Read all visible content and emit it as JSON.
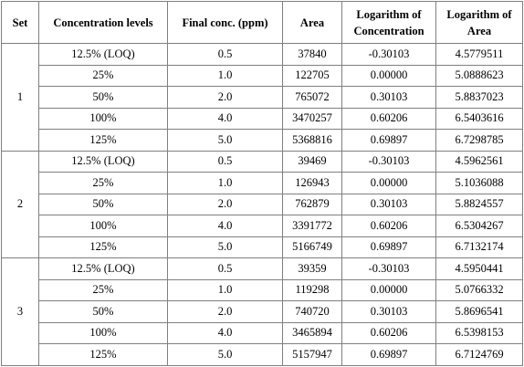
{
  "table": {
    "headers": [
      "Set",
      "Concentration levels",
      "Final conc. (ppm)",
      "Area",
      "Logarithm of Concentration",
      "Logarithm of Area"
    ],
    "sets": [
      {
        "set": "1",
        "rows": [
          {
            "level": "12.5% (LOQ)",
            "final_conc": "0.5",
            "area": "37840",
            "log_conc": "-0.30103",
            "log_area": "4.5779511"
          },
          {
            "level": "25%",
            "final_conc": "1.0",
            "area": "122705",
            "log_conc": "0.00000",
            "log_area": "5.0888623"
          },
          {
            "level": "50%",
            "final_conc": "2.0",
            "area": "765072",
            "log_conc": "0.30103",
            "log_area": "5.8837023"
          },
          {
            "level": "100%",
            "final_conc": "4.0",
            "area": "3470257",
            "log_conc": "0.60206",
            "log_area": "6.5403616"
          },
          {
            "level": "125%",
            "final_conc": "5.0",
            "area": "5368816",
            "log_conc": "0.69897",
            "log_area": "6.7298785"
          }
        ]
      },
      {
        "set": "2",
        "rows": [
          {
            "level": "12.5% (LOQ)",
            "final_conc": "0.5",
            "area": "39469",
            "log_conc": "-0.30103",
            "log_area": "4.5962561"
          },
          {
            "level": "25%",
            "final_conc": "1.0",
            "area": "126943",
            "log_conc": "0.00000",
            "log_area": "5.1036088"
          },
          {
            "level": "50%",
            "final_conc": "2.0",
            "area": "762879",
            "log_conc": "0.30103",
            "log_area": "5.8824557"
          },
          {
            "level": "100%",
            "final_conc": "4.0",
            "area": "3391772",
            "log_conc": "0.60206",
            "log_area": "6.5304267"
          },
          {
            "level": "125%",
            "final_conc": "5.0",
            "area": "5166749",
            "log_conc": "0.69897",
            "log_area": "6.7132174"
          }
        ]
      },
      {
        "set": "3",
        "rows": [
          {
            "level": "12.5% (LOQ)",
            "final_conc": "0.5",
            "area": "39359",
            "log_conc": "-0.30103",
            "log_area": "4.5950441"
          },
          {
            "level": "25%",
            "final_conc": "1.0",
            "area": "119298",
            "log_conc": "0.00000",
            "log_area": "5.0766332"
          },
          {
            "level": "50%",
            "final_conc": "2.0",
            "area": "740720",
            "log_conc": "0.30103",
            "log_area": "5.8696541"
          },
          {
            "level": "100%",
            "final_conc": "4.0",
            "area": "3465894",
            "log_conc": "0.60206",
            "log_area": "6.5398153"
          },
          {
            "level": "125%",
            "final_conc": "5.0",
            "area": "5157947",
            "log_conc": "0.69897",
            "log_area": "6.7124769"
          }
        ]
      }
    ]
  }
}
